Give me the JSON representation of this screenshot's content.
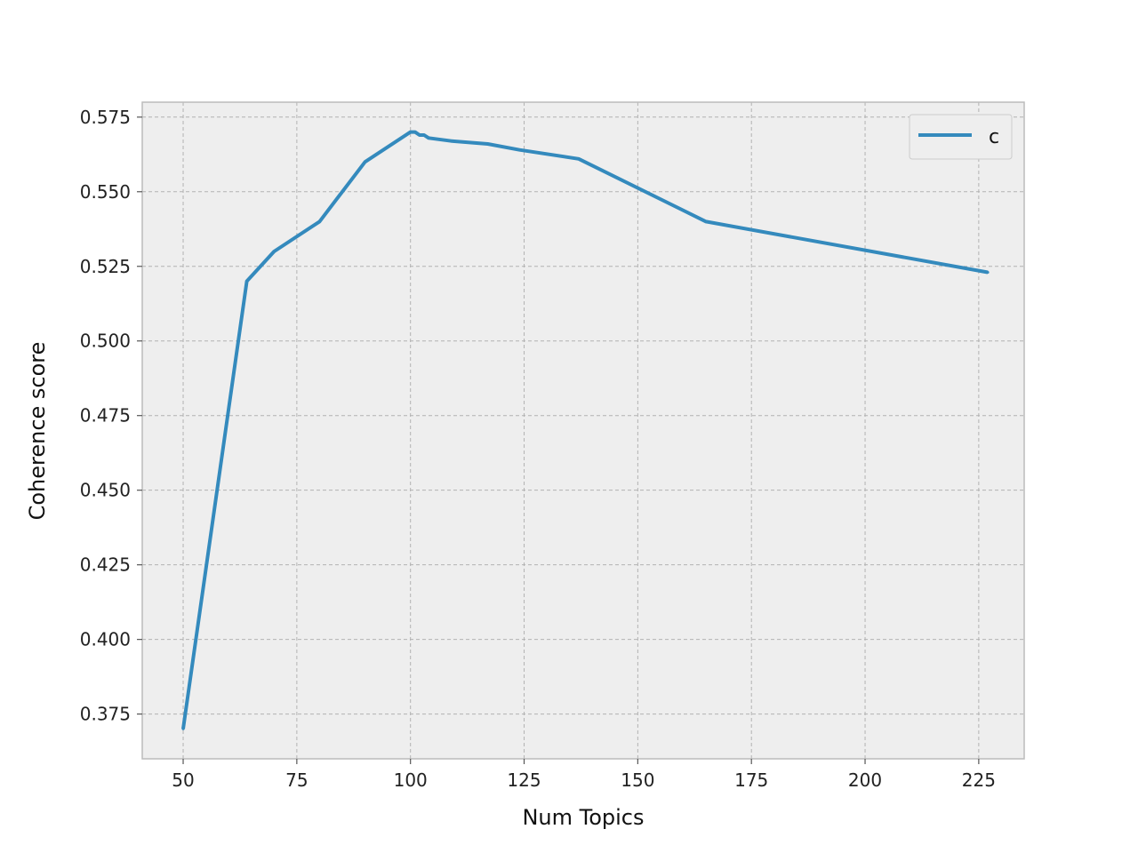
{
  "chart_data": {
    "type": "line",
    "xlabel": "Num Topics",
    "ylabel": "Coherence score",
    "xlim": [
      41,
      235
    ],
    "ylim": [
      0.36,
      0.58
    ],
    "x_ticks": [
      50,
      75,
      100,
      125,
      150,
      175,
      200,
      225
    ],
    "x_tick_labels": [
      "50",
      "75",
      "100",
      "125",
      "150",
      "175",
      "200",
      "225"
    ],
    "y_ticks": [
      0.375,
      0.4,
      0.425,
      0.45,
      0.475,
      0.5,
      0.525,
      0.55,
      0.575
    ],
    "y_tick_labels": [
      "0.375",
      "0.400",
      "0.425",
      "0.450",
      "0.475",
      "0.500",
      "0.525",
      "0.550",
      "0.575"
    ],
    "grid": true,
    "legend_position": "top-right",
    "series": [
      {
        "name": "c",
        "color": "#348abd",
        "x": [
          50,
          64,
          70,
          80,
          90,
          100,
          101,
          102,
          103,
          104,
          109,
          117,
          124,
          137,
          165,
          227
        ],
        "y": [
          0.37,
          0.52,
          0.53,
          0.54,
          0.56,
          0.57,
          0.57,
          0.569,
          0.569,
          0.568,
          0.567,
          0.566,
          0.564,
          0.561,
          0.54,
          0.523
        ]
      }
    ]
  }
}
